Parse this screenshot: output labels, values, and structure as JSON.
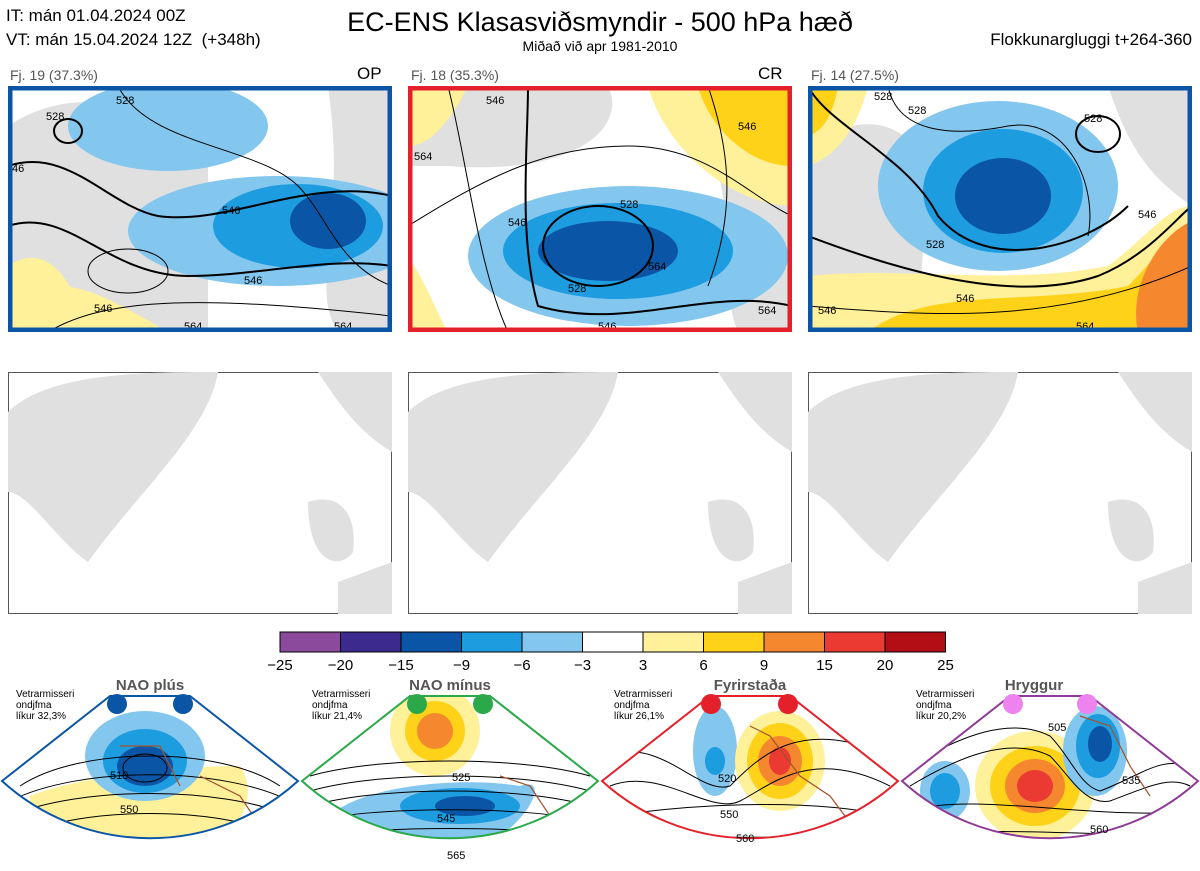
{
  "header": {
    "init_time": "IT: mán 01.04.2024 00Z",
    "valid_time": "VT: mán 15.04.2024 12Z  (+348h)",
    "title": "EC-ENS Klasasviðsmyndir - 500 hPa hæð",
    "subtitle": "Miðað við apr 1981-2010",
    "window": "Flokkunargluggi t+264-360"
  },
  "clusters": [
    {
      "label": "Fj. 19 (37.3%)",
      "tag": "OP",
      "frame_color": "#0b55a6",
      "contour_labels": [
        "528",
        "46",
        "546",
        "546",
        "528",
        "564",
        "564",
        "546"
      ]
    },
    {
      "label": "Fj. 18 (35.3%)",
      "tag": "CR",
      "frame_color": "#e4202a",
      "contour_labels": [
        "546",
        "564",
        "528",
        "528",
        "546",
        "546",
        "564",
        "564",
        "546"
      ]
    },
    {
      "label": "Fj. 14 (27.5%)",
      "tag": "",
      "frame_color": "#0b55a6",
      "contour_labels": [
        "528",
        "528",
        "528",
        "546",
        "546",
        "564",
        "546",
        "528"
      ]
    }
  ],
  "colorbar": {
    "ticks": [
      "−25",
      "−20",
      "−15",
      "−9",
      "−6",
      "−3",
      "3",
      "6",
      "9",
      "15",
      "20",
      "25"
    ],
    "colors": [
      "#8c4a9c",
      "#3d2a8e",
      "#0b55a6",
      "#1e9ce0",
      "#83c6ee",
      "#ffffff",
      "#fff09a",
      "#ffd21a",
      "#f5882f",
      "#ea3a32",
      "#b30e16"
    ]
  },
  "regimes": [
    {
      "name": "NAO plús",
      "text": [
        "Vetrarmisseri",
        "ondjfma",
        "líkur 32,3%"
      ],
      "color": "#0b55a6",
      "contour_labels": [
        "510",
        "550"
      ]
    },
    {
      "name": "NAO mínus",
      "text": [
        "Vetrarmisseri",
        "ondjfma",
        "líkur 21,4%"
      ],
      "color": "#2ba84a",
      "contour_labels": [
        "525",
        "545",
        "565"
      ]
    },
    {
      "name": "Fyrirstaða",
      "text": [
        "Vetrarmisseri",
        "ondjfma",
        "líkur 26,1%"
      ],
      "color": "#e4202a",
      "contour_labels": [
        "520",
        "550",
        "560"
      ]
    },
    {
      "name": "Hryggur",
      "text": [
        "Vetrarmisseri",
        "ondjfma",
        "líkur 20,2%"
      ],
      "color": "#8e3a96",
      "contour_labels": [
        "505",
        "535",
        "560"
      ]
    }
  ]
}
